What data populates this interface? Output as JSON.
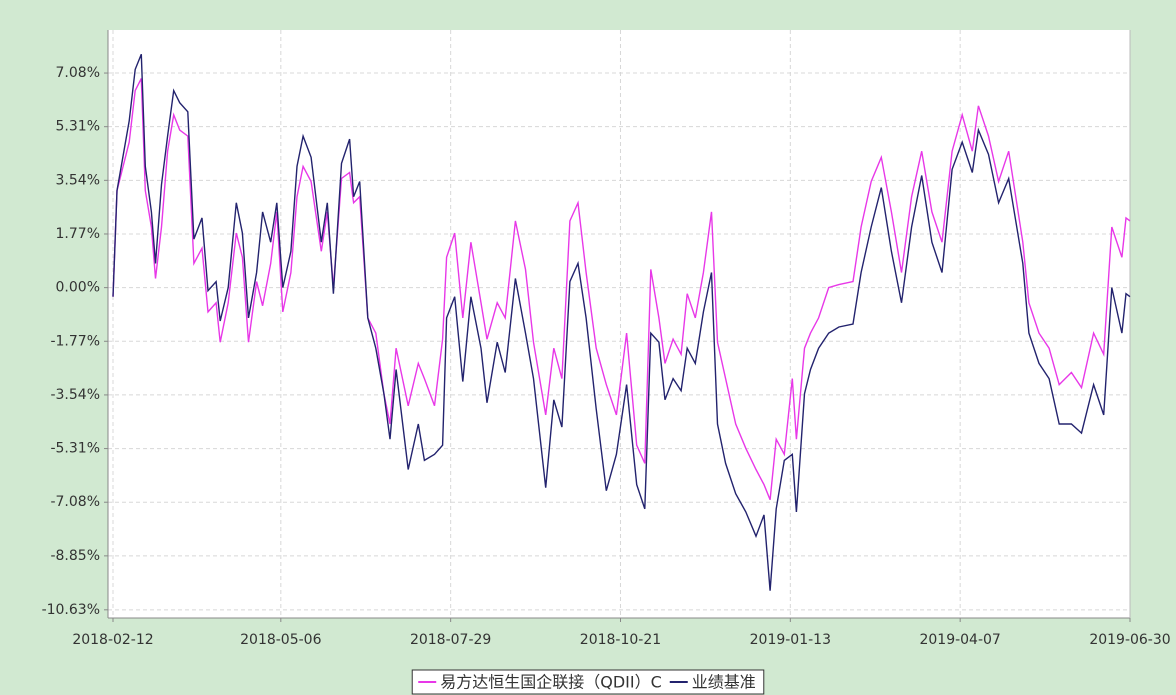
{
  "chart_data": {
    "type": "line",
    "x": [
      "2018-02-12",
      "2018-02-14",
      "2018-02-20",
      "2018-02-23",
      "2018-02-26",
      "2018-02-28",
      "2018-03-03",
      "2018-03-05",
      "2018-03-08",
      "2018-03-11",
      "2018-03-14",
      "2018-03-17",
      "2018-03-21",
      "2018-03-24",
      "2018-03-28",
      "2018-03-31",
      "2018-04-04",
      "2018-04-06",
      "2018-04-10",
      "2018-04-14",
      "2018-04-17",
      "2018-04-20",
      "2018-04-24",
      "2018-04-27",
      "2018-05-01",
      "2018-05-04",
      "2018-05-07",
      "2018-05-11",
      "2018-05-14",
      "2018-05-17",
      "2018-05-21",
      "2018-05-26",
      "2018-05-29",
      "2018-06-01",
      "2018-06-05",
      "2018-06-09",
      "2018-06-11",
      "2018-06-14",
      "2018-06-18",
      "2018-06-22",
      "2018-06-26",
      "2018-06-29",
      "2018-07-02",
      "2018-07-08",
      "2018-07-13",
      "2018-07-16",
      "2018-07-21",
      "2018-07-25",
      "2018-07-27",
      "2018-07-31",
      "2018-08-04",
      "2018-08-08",
      "2018-08-13",
      "2018-08-16",
      "2018-08-21",
      "2018-08-25",
      "2018-08-30",
      "2018-09-04",
      "2018-09-08",
      "2018-09-14",
      "2018-09-18",
      "2018-09-22",
      "2018-09-26",
      "2018-09-30",
      "2018-10-04",
      "2018-10-09",
      "2018-10-14",
      "2018-10-19",
      "2018-10-24",
      "2018-10-29",
      "2018-11-02",
      "2018-11-05",
      "2018-11-09",
      "2018-11-12",
      "2018-11-16",
      "2018-11-20",
      "2018-11-23",
      "2018-11-27",
      "2018-12-01",
      "2018-12-05",
      "2018-12-08",
      "2018-12-12",
      "2018-12-17",
      "2018-12-22",
      "2018-12-27",
      "2018-12-31",
      "2019-01-03",
      "2019-01-06",
      "2019-01-10",
      "2019-01-14",
      "2019-01-16",
      "2019-01-20",
      "2019-01-23",
      "2019-01-27",
      "2019-02-01",
      "2019-02-06",
      "2019-02-13",
      "2019-02-17",
      "2019-02-22",
      "2019-02-27",
      "2019-03-04",
      "2019-03-09",
      "2019-03-14",
      "2019-03-19",
      "2019-03-24",
      "2019-03-29",
      "2019-04-03",
      "2019-04-08",
      "2019-04-13",
      "2019-04-16",
      "2019-04-21",
      "2019-04-26",
      "2019-05-01",
      "2019-05-08",
      "2019-05-11",
      "2019-05-16",
      "2019-05-21",
      "2019-05-26",
      "2019-06-01",
      "2019-06-06",
      "2019-06-12",
      "2019-06-17",
      "2019-06-21",
      "2019-06-26",
      "2019-06-28",
      "2019-06-30"
    ],
    "series": [
      {
        "name": "易方达恒生国企联接（QDII）C",
        "color": "#e838e8",
        "values": [
          -0.3,
          3.2,
          4.8,
          6.5,
          6.9,
          3.2,
          2.0,
          0.3,
          2.0,
          4.5,
          5.7,
          5.2,
          5.0,
          0.8,
          1.3,
          -0.8,
          -0.5,
          -1.8,
          -0.5,
          1.8,
          1.0,
          -1.8,
          0.2,
          -0.6,
          0.8,
          2.5,
          -0.8,
          0.5,
          3.0,
          4.0,
          3.5,
          1.2,
          2.5,
          0.0,
          3.6,
          3.8,
          2.8,
          3.0,
          -1.0,
          -1.5,
          -3.5,
          -4.5,
          -2.0,
          -3.9,
          -2.5,
          -3.0,
          -3.9,
          -1.7,
          1.0,
          1.8,
          -1.0,
          1.5,
          -0.5,
          -1.7,
          -0.5,
          -1.0,
          2.2,
          0.6,
          -1.8,
          -4.2,
          -2.0,
          -3.0,
          2.2,
          2.8,
          0.5,
          -2.0,
          -3.2,
          -4.2,
          -1.5,
          -5.2,
          -5.8,
          0.6,
          -1.0,
          -2.5,
          -1.7,
          -2.2,
          -0.2,
          -1.0,
          0.5,
          2.5,
          -1.8,
          -3.0,
          -4.5,
          -5.3,
          -6.0,
          -6.5,
          -7.0,
          -5.0,
          -5.5,
          -3.0,
          -5.0,
          -2.0,
          -1.5,
          -1.0,
          0.0,
          0.1,
          0.2,
          2.0,
          3.5,
          4.3,
          2.5,
          0.5,
          3.0,
          4.5,
          2.5,
          1.5,
          4.5,
          5.7,
          4.5,
          6.0,
          5.0,
          3.5,
          4.5,
          1.5,
          -0.5,
          -1.5,
          -2.0,
          -3.2,
          -2.8,
          -3.3,
          -1.5,
          -2.2,
          2.0,
          1.0,
          2.3,
          2.2
        ]
      },
      {
        "name": "业绩基准",
        "color": "#23236e",
        "values": [
          -0.3,
          3.2,
          5.5,
          7.2,
          7.7,
          4.0,
          2.5,
          0.8,
          3.4,
          5.0,
          6.5,
          6.1,
          5.8,
          1.6,
          2.3,
          -0.1,
          0.2,
          -1.1,
          0.0,
          2.8,
          1.8,
          -1.0,
          0.5,
          2.5,
          1.5,
          2.8,
          0.0,
          1.2,
          4.0,
          5.0,
          4.3,
          1.5,
          2.8,
          -0.2,
          4.1,
          4.9,
          3.0,
          3.5,
          -1.0,
          -2.0,
          -3.5,
          -5.0,
          -2.7,
          -6.0,
          -4.5,
          -5.7,
          -5.5,
          -5.2,
          -1.0,
          -0.3,
          -3.1,
          -0.3,
          -2.0,
          -3.8,
          -1.8,
          -2.8,
          0.3,
          -1.5,
          -3.0,
          -6.6,
          -3.7,
          -4.6,
          0.2,
          0.8,
          -1.0,
          -4.0,
          -6.7,
          -5.5,
          -3.2,
          -6.5,
          -7.3,
          -1.5,
          -1.8,
          -3.7,
          -3.0,
          -3.4,
          -2.0,
          -2.5,
          -0.8,
          0.5,
          -4.5,
          -5.8,
          -6.8,
          -7.4,
          -8.2,
          -7.5,
          -10.0,
          -7.3,
          -5.7,
          -5.5,
          -7.4,
          -3.5,
          -2.7,
          -2.0,
          -1.5,
          -1.3,
          -1.2,
          0.5,
          2.0,
          3.3,
          1.2,
          -0.5,
          2.0,
          3.7,
          1.5,
          0.5,
          3.9,
          4.8,
          3.8,
          5.2,
          4.4,
          2.8,
          3.6,
          0.8,
          -1.5,
          -2.5,
          -3.0,
          -4.5,
          -4.5,
          -4.8,
          -3.2,
          -4.2,
          0.0,
          -1.5,
          -0.2,
          -0.3
        ]
      }
    ],
    "xlim": [
      "2018-02-12",
      "2019-06-30"
    ],
    "xticks": [
      "2018-02-12",
      "2018-05-06",
      "2018-07-29",
      "2018-10-21",
      "2019-01-13",
      "2019-04-07",
      "2019-06-30"
    ],
    "ylim": [
      -10.9,
      8.5
    ],
    "yticks": [
      {
        "value": 7.08,
        "label": "7.08%"
      },
      {
        "value": 5.31,
        "label": "5.31%"
      },
      {
        "value": 3.54,
        "label": "3.54%"
      },
      {
        "value": 1.77,
        "label": "1.77%"
      },
      {
        "value": 0.0,
        "label": "0.00%"
      },
      {
        "value": -1.77,
        "label": "-1.77%"
      },
      {
        "value": -3.54,
        "label": "-3.54%"
      },
      {
        "value": -5.31,
        "label": "-5.31%"
      },
      {
        "value": -7.08,
        "label": "-7.08%"
      },
      {
        "value": -8.85,
        "label": "-8.85%"
      },
      {
        "value": -10.63,
        "label": "-10.63%"
      }
    ],
    "grid": true,
    "legend": "bottom"
  }
}
